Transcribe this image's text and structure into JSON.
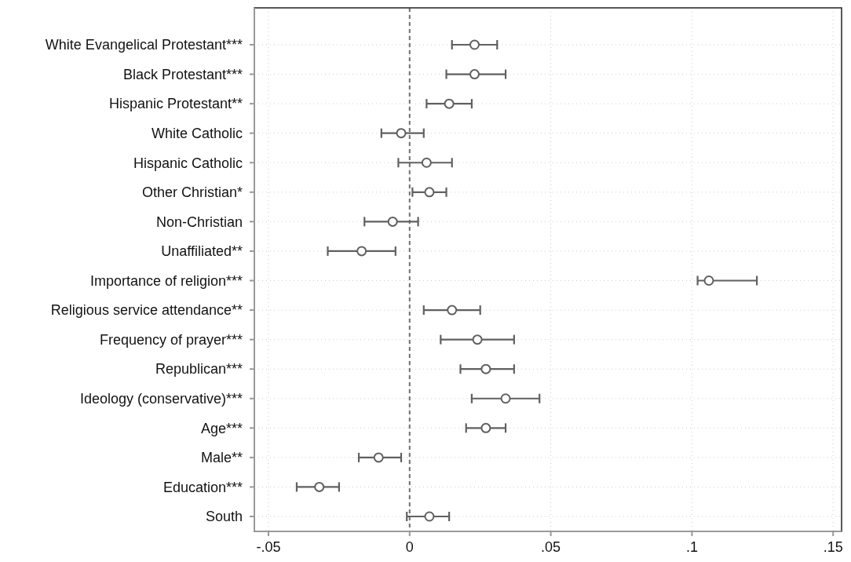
{
  "chart_data": {
    "type": "scatter",
    "orientation": "horizontal",
    "categories": [
      "White Evangelical Protestant***",
      "Black Protestant***",
      "Hispanic Protestant**",
      "White Catholic",
      "Hispanic Catholic",
      "Other Christian*",
      "Non-Christian",
      "Unaffiliated**",
      "Importance of religion***",
      "Religious service attendance**",
      "Frequency of prayer***",
      "Republican***",
      "Ideology (conservative)***",
      "Age***",
      "Male**",
      "Education***",
      "South"
    ],
    "series": [
      {
        "color": "#606060",
        "values": [
          0.023,
          0.023,
          0.014,
          -0.003,
          0.006,
          0.007,
          -0.006,
          -0.017,
          0.106,
          0.015,
          0.024,
          0.027,
          0.034,
          0.027,
          -0.011,
          -0.032,
          0.007
        ],
        "errors": [
          [
            0.015,
            0.031
          ],
          [
            0.013,
            0.034
          ],
          [
            0.006,
            0.022
          ],
          [
            -0.01,
            0.005
          ],
          [
            -0.004,
            0.015
          ],
          [
            0.001,
            0.013
          ],
          [
            -0.016,
            0.003
          ],
          [
            -0.029,
            -0.005
          ],
          [
            0.102,
            0.123
          ],
          [
            0.005,
            0.025
          ],
          [
            0.011,
            0.037
          ],
          [
            0.018,
            0.037
          ],
          [
            0.022,
            0.046
          ],
          [
            0.02,
            0.034
          ],
          [
            -0.018,
            -0.003
          ],
          [
            -0.04,
            -0.025
          ],
          [
            -0.001,
            0.014
          ]
        ]
      }
    ],
    "xlim": [
      -0.055,
      0.153
    ],
    "xticks": [
      {
        "value": -0.05,
        "label": "-.05"
      },
      0,
      {
        "value": 0.05,
        "label": ".05"
      },
      {
        "value": 0.1,
        "label": ".1"
      },
      {
        "value": 0.15,
        "label": ".15"
      }
    ],
    "ref_lines": [
      {
        "axis": "x",
        "value": 0,
        "line_style": "dashed",
        "color": "#707070"
      }
    ],
    "grid": true,
    "marker": "circle"
  }
}
